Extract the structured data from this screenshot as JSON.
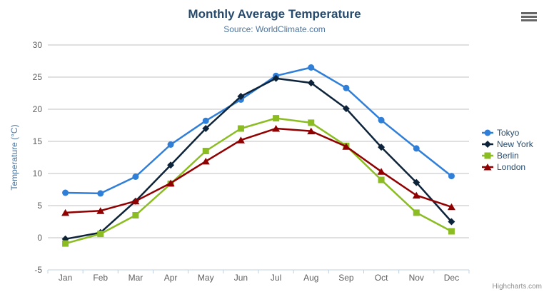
{
  "chart": {
    "title": "Monthly Average Temperature",
    "subtitle": "Source: WorldClimate.com",
    "credits": "Highcharts.com",
    "export_menu_icon": "hamburger-icon",
    "colors": {
      "title": "#274b6d",
      "subtitle": "#4d759e",
      "axis_labels": "#606060",
      "axis_title": "#4d759e",
      "gridline": "#c0c0c0",
      "axis_line": "#c0d0e0",
      "legend_text": "#274b6d",
      "credits_text": "#909090"
    }
  },
  "chart_data": {
    "type": "line",
    "title": "Monthly Average Temperature",
    "subtitle": "Source: WorldClimate.com",
    "categories": [
      "Jan",
      "Feb",
      "Mar",
      "Apr",
      "May",
      "Jun",
      "Jul",
      "Aug",
      "Sep",
      "Oct",
      "Nov",
      "Dec"
    ],
    "xlabel": "",
    "ylabel": "Temperature (°C)",
    "ylim": [
      -5,
      30
    ],
    "ytick_step": 5,
    "grid": true,
    "legend_position": "right",
    "series": [
      {
        "name": "Tokyo",
        "color": "#2f7ed8",
        "marker": "circle",
        "values": [
          7.0,
          6.9,
          9.5,
          14.5,
          18.2,
          21.5,
          25.2,
          26.5,
          23.3,
          18.3,
          13.9,
          9.6
        ]
      },
      {
        "name": "New York",
        "color": "#0d233a",
        "marker": "diamond",
        "values": [
          -0.2,
          0.8,
          5.7,
          11.3,
          17.0,
          22.0,
          24.8,
          24.1,
          20.1,
          14.1,
          8.6,
          2.5
        ]
      },
      {
        "name": "Berlin",
        "color": "#8bbc21",
        "marker": "square",
        "values": [
          -0.9,
          0.6,
          3.5,
          8.4,
          13.5,
          17.0,
          18.6,
          17.9,
          14.3,
          9.0,
          3.9,
          1.0
        ]
      },
      {
        "name": "London",
        "color": "#910000",
        "marker": "triangle",
        "values": [
          3.9,
          4.2,
          5.7,
          8.5,
          11.9,
          15.2,
          17.0,
          16.6,
          14.2,
          10.3,
          6.6,
          4.8
        ]
      }
    ]
  }
}
